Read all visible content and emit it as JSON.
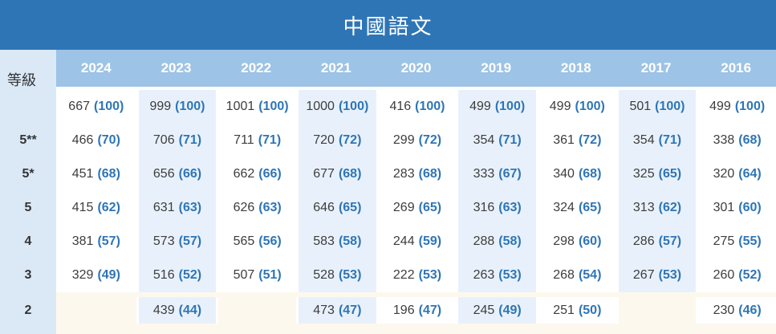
{
  "chart_data": {
    "type": "table",
    "title": "中國語文",
    "row_header": "等級",
    "years": [
      "2024",
      "2023",
      "2022",
      "2021",
      "2020",
      "2019",
      "2018",
      "2017",
      "2016"
    ],
    "rows": [
      {
        "grade": "",
        "cells": [
          {
            "count": "667",
            "share": "(100)"
          },
          {
            "count": "999",
            "share": "(100)"
          },
          {
            "count": "1001",
            "share": "(100)"
          },
          {
            "count": "1000",
            "share": "(100)"
          },
          {
            "count": "416",
            "share": "(100)"
          },
          {
            "count": "499",
            "share": "(100)"
          },
          {
            "count": "499",
            "share": "(100)"
          },
          {
            "count": "501",
            "share": "(100)"
          },
          {
            "count": "499",
            "share": "(100)"
          }
        ]
      },
      {
        "grade": "5**",
        "cells": [
          {
            "count": "466",
            "share": "(70)"
          },
          {
            "count": "706",
            "share": "(71)"
          },
          {
            "count": "711",
            "share": "(71)"
          },
          {
            "count": "720",
            "share": "(72)"
          },
          {
            "count": "299",
            "share": "(72)"
          },
          {
            "count": "354",
            "share": "(71)"
          },
          {
            "count": "361",
            "share": "(72)"
          },
          {
            "count": "354",
            "share": "(71)"
          },
          {
            "count": "338",
            "share": "(68)"
          }
        ]
      },
      {
        "grade": "5*",
        "cells": [
          {
            "count": "451",
            "share": "(68)"
          },
          {
            "count": "656",
            "share": "(66)"
          },
          {
            "count": "662",
            "share": "(66)"
          },
          {
            "count": "677",
            "share": "(68)"
          },
          {
            "count": "283",
            "share": "(68)"
          },
          {
            "count": "333",
            "share": "(67)"
          },
          {
            "count": "340",
            "share": "(68)"
          },
          {
            "count": "325",
            "share": "(65)"
          },
          {
            "count": "320",
            "share": "(64)"
          }
        ]
      },
      {
        "grade": "5",
        "cells": [
          {
            "count": "415",
            "share": "(62)"
          },
          {
            "count": "631",
            "share": "(63)"
          },
          {
            "count": "626",
            "share": "(63)"
          },
          {
            "count": "646",
            "share": "(65)"
          },
          {
            "count": "269",
            "share": "(65)"
          },
          {
            "count": "316",
            "share": "(63)"
          },
          {
            "count": "324",
            "share": "(65)"
          },
          {
            "count": "313",
            "share": "(62)"
          },
          {
            "count": "301",
            "share": "(60)"
          }
        ]
      },
      {
        "grade": "4",
        "cells": [
          {
            "count": "381",
            "share": "(57)"
          },
          {
            "count": "573",
            "share": "(57)"
          },
          {
            "count": "565",
            "share": "(56)"
          },
          {
            "count": "583",
            "share": "(58)"
          },
          {
            "count": "244",
            "share": "(59)"
          },
          {
            "count": "288",
            "share": "(58)"
          },
          {
            "count": "298",
            "share": "(60)"
          },
          {
            "count": "286",
            "share": "(57)"
          },
          {
            "count": "275",
            "share": "(55)"
          }
        ]
      },
      {
        "grade": "3",
        "cells": [
          {
            "count": "329",
            "share": "(49)"
          },
          {
            "count": "516",
            "share": "(52)"
          },
          {
            "count": "507",
            "share": "(51)"
          },
          {
            "count": "528",
            "share": "(53)"
          },
          {
            "count": "222",
            "share": "(53)"
          },
          {
            "count": "263",
            "share": "(53)"
          },
          {
            "count": "268",
            "share": "(54)"
          },
          {
            "count": "267",
            "share": "(53)"
          },
          {
            "count": "260",
            "share": "(52)"
          }
        ]
      },
      {
        "grade": "2",
        "cells": [
          null,
          {
            "count": "439",
            "share": "(44)"
          },
          null,
          {
            "count": "473",
            "share": "(47)"
          },
          {
            "count": "196",
            "share": "(47)"
          },
          {
            "count": "245",
            "share": "(49)"
          },
          {
            "count": "251",
            "share": "(50)"
          },
          null,
          {
            "count": "230",
            "share": "(46)"
          }
        ]
      }
    ]
  },
  "colors": {
    "banner_bg": "#2e75b6",
    "year_header_bg": "#9dc3e6",
    "grade_column_bg": "#dbe9f7",
    "stripe_bg": "#e8f1fb",
    "page_bg": "#fdf8ee",
    "cell_bg": "#ffffff",
    "count_text": "#3d3d3d",
    "share_text": "#2e75b6",
    "year_text": "#ffffff"
  }
}
